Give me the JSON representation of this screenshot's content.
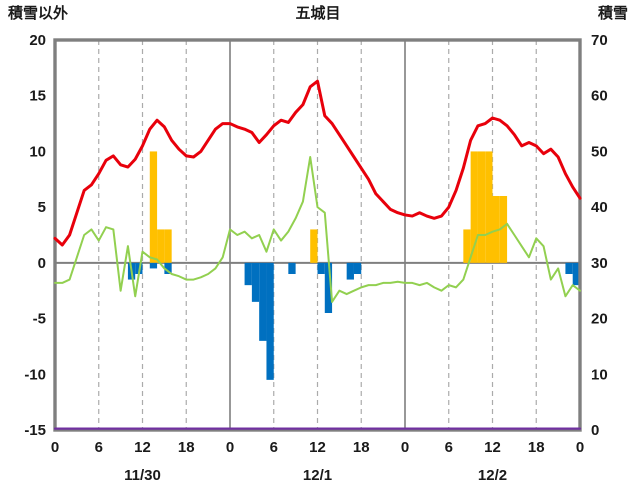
{
  "chart_data": {
    "type": "line",
    "title": "五城目",
    "left_axis": {
      "label": "積雪以外",
      "min": -15,
      "max": 20,
      "ticks": [
        20,
        15,
        10,
        5,
        0,
        -5,
        -10,
        -15
      ]
    },
    "right_axis": {
      "label": "積雪",
      "min": 0,
      "max": 70,
      "ticks": [
        70,
        60,
        50,
        40,
        30,
        20,
        10,
        0
      ]
    },
    "x_axis": {
      "min": 0,
      "max": 72,
      "tick_interval": 6,
      "tick_labels": [
        "0",
        "6",
        "12",
        "18",
        "0",
        "6",
        "12",
        "18",
        "0",
        "6",
        "12",
        "18",
        "0"
      ],
      "day_boundaries": [
        24,
        48
      ],
      "day_labels": [
        {
          "label": "11/30",
          "center_hour": 12
        },
        {
          "label": "12/1",
          "center_hour": 36
        },
        {
          "label": "12/2",
          "center_hour": 60
        }
      ]
    },
    "colors": {
      "red": "#e8000b",
      "green": "#92d050",
      "orange": "#ffc000",
      "blue": "#0070c0",
      "purple": "#7030a0",
      "frame": "#7f7f7f",
      "grid": "#ababab"
    },
    "series": [
      {
        "name": "red-line",
        "type": "line",
        "color": "#e8000b",
        "width": 3,
        "values": [
          2.2,
          1.6,
          2.5,
          4.5,
          6.5,
          7.0,
          8.0,
          9.2,
          9.6,
          8.8,
          8.6,
          9.3,
          10.5,
          12.0,
          12.8,
          12.2,
          11.0,
          10.2,
          9.6,
          9.5,
          10.0,
          11.0,
          12.0,
          12.5,
          12.5,
          12.2,
          12.0,
          11.7,
          10.8,
          11.5,
          12.3,
          12.8,
          12.6,
          13.5,
          14.2,
          15.8,
          16.3,
          13.2,
          12.5,
          11.5,
          10.5,
          9.5,
          8.5,
          7.5,
          6.2,
          5.5,
          4.8,
          4.5,
          4.3,
          4.2,
          4.5,
          4.2,
          4.0,
          4.2,
          5.0,
          6.5,
          8.5,
          11.0,
          12.3,
          12.5,
          13.0,
          12.8,
          12.3,
          11.5,
          10.5,
          10.8,
          10.5,
          9.8,
          10.2,
          9.5,
          8.0,
          6.8,
          5.8
        ]
      },
      {
        "name": "green-line",
        "type": "line",
        "color": "#92d050",
        "width": 2,
        "values": [
          -1.8,
          -1.8,
          -1.5,
          0.5,
          2.5,
          3.0,
          2.0,
          3.2,
          3.0,
          -2.5,
          1.5,
          -3.0,
          1.0,
          0.5,
          0.3,
          -0.5,
          -1.0,
          -1.2,
          -1.5,
          -1.5,
          -1.3,
          -1.0,
          -0.5,
          0.5,
          3.0,
          2.5,
          2.8,
          2.2,
          2.5,
          1.0,
          3.0,
          2.0,
          2.8,
          4.0,
          5.5,
          9.5,
          5.0,
          4.5,
          -3.5,
          -2.5,
          -2.8,
          -2.5,
          -2.2,
          -2.0,
          -2.0,
          -1.8,
          -1.8,
          -1.7,
          -1.8,
          -1.8,
          -2.0,
          -1.8,
          -2.2,
          -2.5,
          -2.0,
          -2.2,
          -1.5,
          0.5,
          2.5,
          2.5,
          2.8,
          3.0,
          3.5,
          2.5,
          1.5,
          0.5,
          2.2,
          1.5,
          -1.5,
          -0.5,
          -3.0,
          -2.0,
          -2.5
        ]
      },
      {
        "name": "purple-line",
        "type": "line",
        "color": "#7030a0",
        "width": 2.2,
        "constant": -15
      },
      {
        "name": "orange-bars",
        "type": "bar",
        "color": "#ffc000",
        "bars": [
          {
            "h": 13,
            "v": 10
          },
          {
            "h": 14,
            "v": 3
          },
          {
            "h": 15,
            "v": 3
          },
          {
            "h": 35,
            "v": 3
          },
          {
            "h": 56,
            "v": 3
          },
          {
            "h": 57,
            "v": 10
          },
          {
            "h": 58,
            "v": 10
          },
          {
            "h": 59,
            "v": 10
          },
          {
            "h": 60,
            "v": 6
          },
          {
            "h": 61,
            "v": 6
          }
        ]
      },
      {
        "name": "blue-bars",
        "type": "bar",
        "color": "#0070c0",
        "bars": [
          {
            "h": 10,
            "v": -1.5
          },
          {
            "h": 11,
            "v": -1.0
          },
          {
            "h": 13,
            "v": -0.5
          },
          {
            "h": 15,
            "v": -1.0
          },
          {
            "h": 26,
            "v": -2.0
          },
          {
            "h": 27,
            "v": -3.5
          },
          {
            "h": 28,
            "v": -7.0
          },
          {
            "h": 29,
            "v": -10.5
          },
          {
            "h": 32,
            "v": -1.0
          },
          {
            "h": 36,
            "v": -1.0
          },
          {
            "h": 37,
            "v": -4.5
          },
          {
            "h": 40,
            "v": -1.5
          },
          {
            "h": 41,
            "v": -1.0
          },
          {
            "h": 70,
            "v": -1.0
          },
          {
            "h": 71,
            "v": -2.0
          }
        ]
      }
    ]
  }
}
